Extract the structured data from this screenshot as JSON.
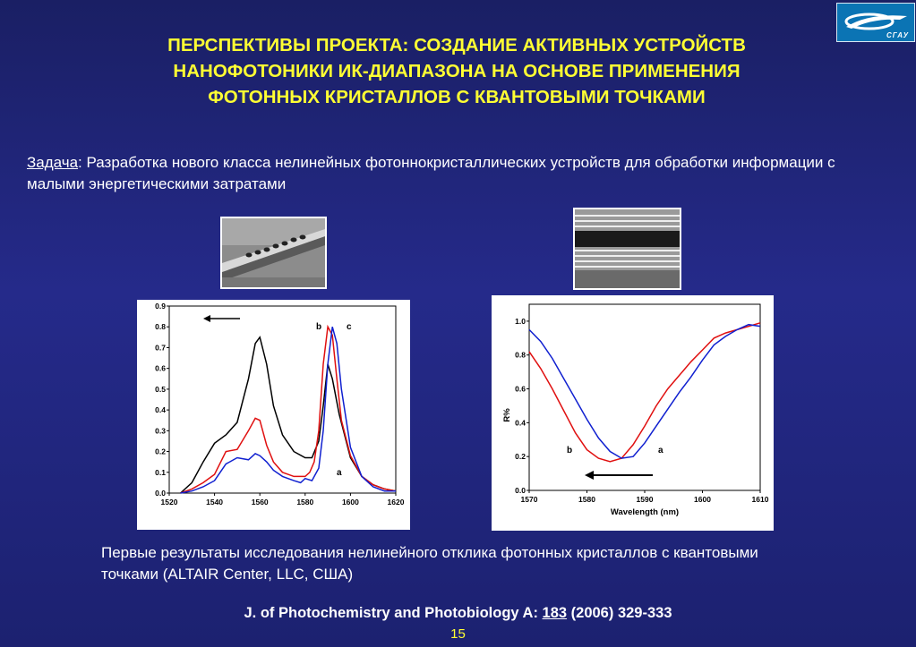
{
  "logo": {
    "text": "СГАУ"
  },
  "title": {
    "line1": "ПЕРСПЕКТИВЫ ПРОЕКТА: СОЗДАНИЕ АКТИВНЫХ УСТРОЙСТВ",
    "line2": "НАНОФОТОНИКИ ИК-ДИАПАЗОНА НА ОСНОВЕ ПРИМЕНЕНИЯ",
    "line3": "ФОТОННЫХ КРИСТАЛЛОВ С КВАНТОВЫМИ ТОЧКАМИ"
  },
  "task": {
    "label": "Задача",
    "text": ": Разработка нового класса  нелинейных фотоннокристаллических устройств для обработки информации с малыми энергетическими затратами"
  },
  "caption": "Первые результаты исследования нелинейного отклика фотонных кристаллов с квантовыми точками (ALTAIR Center, LLC, США)",
  "reference": {
    "journal": "J. of Photochemistry and Photobiology A: ",
    "volume": "183",
    "rest": " (2006) 329-333"
  },
  "page_number": "15",
  "colors": {
    "title": "#ffff33",
    "background": "#1f2478",
    "series_black": "#000000",
    "series_red": "#e01010",
    "series_blue": "#1020d0"
  },
  "chart_data": [
    {
      "type": "line",
      "xlim": [
        1520,
        1620
      ],
      "ylim": [
        0.0,
        0.9
      ],
      "xticks": [
        "1520",
        "1540",
        "1560",
        "1580",
        "1600",
        "1620"
      ],
      "yticks": [
        "0.0",
        "0.1",
        "0.2",
        "0.3",
        "0.4",
        "0.5",
        "0.6",
        "0.7",
        "0.8",
        "0.9"
      ],
      "annotations": [
        "b",
        "c",
        "a"
      ],
      "arrow": "left",
      "series": [
        {
          "color": "#000000",
          "x": [
            1525,
            1530,
            1535,
            1540,
            1545,
            1550,
            1555,
            1558,
            1560,
            1563,
            1566,
            1570,
            1575,
            1580,
            1583,
            1586,
            1588,
            1590,
            1592,
            1595,
            1600,
            1605,
            1610,
            1615,
            1620
          ],
          "y": [
            0.0,
            0.05,
            0.15,
            0.24,
            0.28,
            0.34,
            0.55,
            0.72,
            0.75,
            0.62,
            0.42,
            0.28,
            0.2,
            0.17,
            0.17,
            0.25,
            0.42,
            0.62,
            0.55,
            0.38,
            0.17,
            0.08,
            0.04,
            0.02,
            0.01
          ]
        },
        {
          "color": "#e01010",
          "x": [
            1525,
            1530,
            1535,
            1540,
            1545,
            1550,
            1555,
            1558,
            1560,
            1563,
            1566,
            1570,
            1575,
            1580,
            1582,
            1584,
            1586,
            1588,
            1590,
            1592,
            1594,
            1596,
            1600,
            1605,
            1610,
            1615,
            1620
          ],
          "y": [
            0.0,
            0.02,
            0.05,
            0.09,
            0.2,
            0.21,
            0.3,
            0.36,
            0.35,
            0.23,
            0.15,
            0.1,
            0.08,
            0.08,
            0.1,
            0.15,
            0.3,
            0.62,
            0.8,
            0.76,
            0.55,
            0.35,
            0.18,
            0.08,
            0.04,
            0.02,
            0.01
          ]
        },
        {
          "color": "#1020d0",
          "x": [
            1525,
            1530,
            1535,
            1540,
            1545,
            1550,
            1555,
            1558,
            1560,
            1563,
            1566,
            1570,
            1575,
            1578,
            1580,
            1583,
            1586,
            1588,
            1590,
            1592,
            1594,
            1596,
            1600,
            1605,
            1610,
            1615,
            1620
          ],
          "y": [
            0.0,
            0.01,
            0.03,
            0.06,
            0.14,
            0.17,
            0.16,
            0.19,
            0.18,
            0.15,
            0.11,
            0.08,
            0.06,
            0.05,
            0.07,
            0.06,
            0.12,
            0.3,
            0.62,
            0.8,
            0.72,
            0.5,
            0.22,
            0.08,
            0.03,
            0.01,
            0.01
          ]
        }
      ]
    },
    {
      "type": "line",
      "xlabel": "Wavelength (nm)",
      "ylabel": "R%",
      "xlim": [
        1570,
        1610
      ],
      "ylim": [
        0.0,
        1.1
      ],
      "xticks": [
        "1570",
        "1580",
        "1590",
        "1600",
        "1610"
      ],
      "yticks": [
        "0.0",
        "0.2",
        "0.4",
        "0.6",
        "0.8",
        "1.0"
      ],
      "annotations": [
        "b",
        "a"
      ],
      "arrow": "left",
      "series": [
        {
          "color": "#e01010",
          "x": [
            1570,
            1572,
            1574,
            1576,
            1578,
            1580,
            1582,
            1584,
            1586,
            1588,
            1590,
            1592,
            1594,
            1596,
            1598,
            1600,
            1602,
            1604,
            1606,
            1608,
            1610
          ],
          "y": [
            0.82,
            0.72,
            0.6,
            0.47,
            0.34,
            0.24,
            0.19,
            0.17,
            0.19,
            0.27,
            0.38,
            0.5,
            0.6,
            0.68,
            0.76,
            0.83,
            0.9,
            0.93,
            0.95,
            0.97,
            0.99
          ]
        },
        {
          "color": "#1020d0",
          "x": [
            1570,
            1572,
            1574,
            1576,
            1578,
            1580,
            1582,
            1584,
            1586,
            1588,
            1590,
            1592,
            1594,
            1596,
            1598,
            1600,
            1602,
            1604,
            1606,
            1608,
            1610
          ],
          "y": [
            0.95,
            0.88,
            0.78,
            0.66,
            0.54,
            0.42,
            0.31,
            0.23,
            0.19,
            0.2,
            0.28,
            0.38,
            0.48,
            0.58,
            0.67,
            0.77,
            0.86,
            0.91,
            0.95,
            0.98,
            0.97
          ]
        }
      ]
    }
  ]
}
